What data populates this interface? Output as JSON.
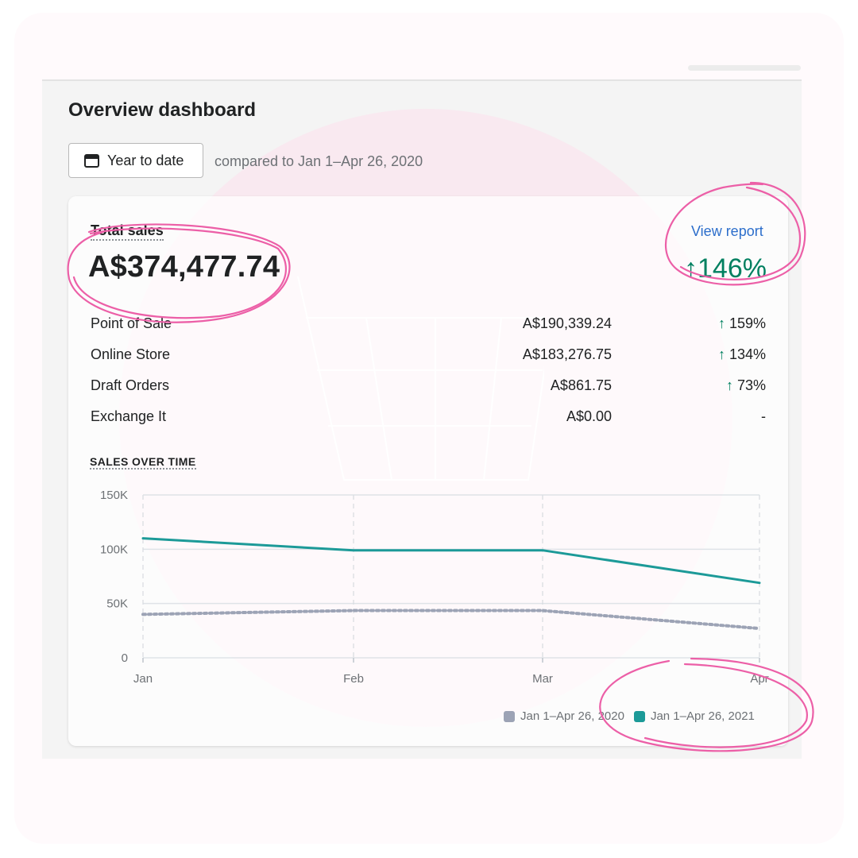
{
  "colors": {
    "brand_green": "#008060",
    "primary_blue": "#2c6ecb",
    "teal_series": "#1c9a98",
    "previous_series": "#9ca3b5",
    "annotation_pink": "#ec5fa7",
    "background_pink": "#fbe4ee"
  },
  "page": {
    "title": "Overview dashboard",
    "date_range_label": "Year to date",
    "comparison_text": "compared to Jan 1–Apr 26, 2020"
  },
  "total_sales": {
    "label": "Total sales",
    "value": "A$374,477.74",
    "view_report": "View report",
    "change": "↑146%"
  },
  "sales_rows": [
    {
      "name": "Point of Sale",
      "amount": "A$190,339.24",
      "arrow": "↑",
      "change": "159%"
    },
    {
      "name": "Online Store",
      "amount": "A$183,276.75",
      "arrow": "↑",
      "change": "134%"
    },
    {
      "name": "Draft Orders",
      "amount": "A$861.75",
      "arrow": "↑",
      "change": "73%"
    },
    {
      "name": "Exchange It",
      "amount": "A$0.00",
      "arrow": "",
      "change": "-"
    }
  ],
  "chart_data": {
    "type": "line",
    "title": "SALES OVER TIME",
    "x": [
      "Jan",
      "Feb",
      "Mar",
      "Apr"
    ],
    "ylim": [
      0,
      150000
    ],
    "y_ticks": [
      {
        "value": 150000,
        "label": "150K"
      },
      {
        "value": 100000,
        "label": "100K"
      },
      {
        "value": 50000,
        "label": "50K"
      },
      {
        "value": 0,
        "label": "0"
      }
    ],
    "grid": true,
    "legend_position": "bottom-right",
    "series": [
      {
        "name": "Jan 1–Apr 26, 2020",
        "values": [
          40000,
          43500,
          43500,
          27000
        ],
        "style": "dotted",
        "color": "#9ca3b5"
      },
      {
        "name": "Jan 1–Apr 26, 2021",
        "values": [
          110000,
          99000,
          99000,
          69000
        ],
        "style": "solid",
        "color": "#1c9a98"
      }
    ]
  }
}
